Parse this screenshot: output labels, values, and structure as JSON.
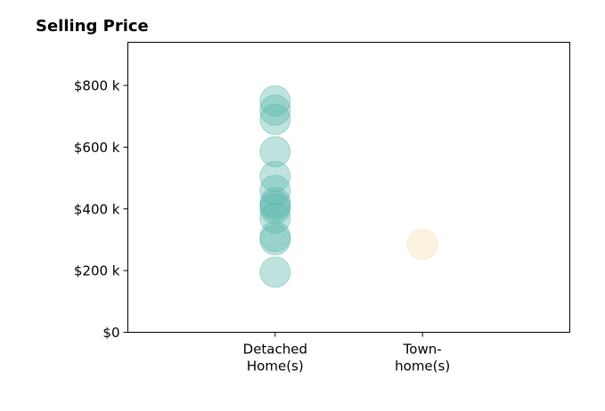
{
  "chart_data": {
    "type": "scatter",
    "title": "Selling Price",
    "xlabel": "",
    "ylabel": "",
    "categories": [
      [
        "Detached",
        "Home(s)"
      ],
      [
        "Town-",
        "home(s)"
      ]
    ],
    "y_ticks": [
      0,
      200000,
      400000,
      600000,
      800000
    ],
    "y_tick_labels": [
      "$0",
      "$200 k",
      "$400 k",
      "$600 k",
      "$800 k"
    ],
    "ylim": [
      0,
      940000
    ],
    "xlim": [
      -1,
      2
    ],
    "grid": false,
    "series": [
      {
        "category_index": 0,
        "color": "#5fb8ad",
        "values": [
          750000,
          720000,
          690000,
          585000,
          505000,
          460000,
          420000,
          410000,
          400000,
          370000,
          310000,
          300000,
          195000
        ]
      },
      {
        "category_index": 1,
        "color": "#f5deb0",
        "values": [
          285000
        ]
      }
    ]
  }
}
